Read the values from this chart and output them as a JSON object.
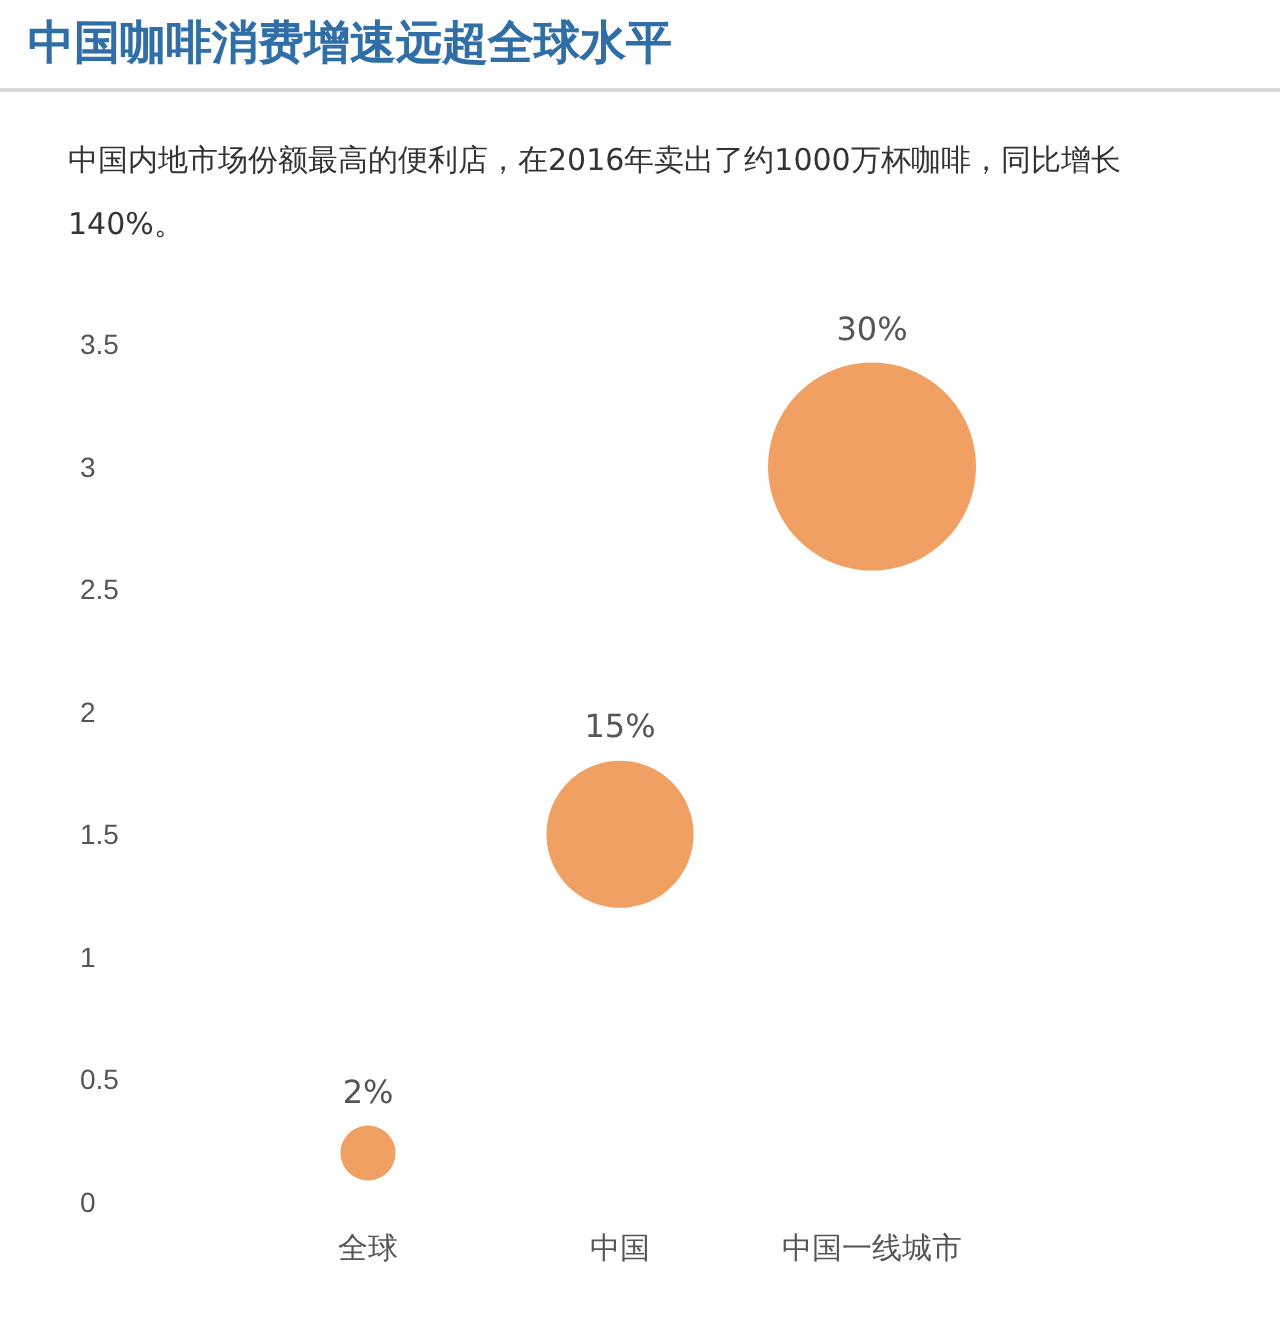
{
  "chart_data": {
    "type": "bubble",
    "title": "中国咖啡消费增速远超全球水平",
    "subtitle": "中国内地市场份额最高的便利店，在2016年卖出了约1000万杯咖啡，同比增长140%。",
    "categories": [
      "全球",
      "中国",
      "中国一线城市"
    ],
    "values": [
      0.2,
      1.5,
      3
    ],
    "sizes": [
      0.07,
      0.5,
      1
    ],
    "annotations": [
      {
        "text": "2%",
        "x": "全球",
        "y": 0.32
      },
      {
        "text": "15%",
        "x": "中国",
        "y": 1.81
      },
      {
        "text": "30%",
        "x": "中国一线城市",
        "y": 3.43
      }
    ],
    "color": "#f0a062",
    "ylim": [
      0,
      3.5
    ],
    "yticks": [
      0,
      0.5,
      1,
      1.5,
      2,
      2.5,
      3,
      3.5
    ]
  }
}
